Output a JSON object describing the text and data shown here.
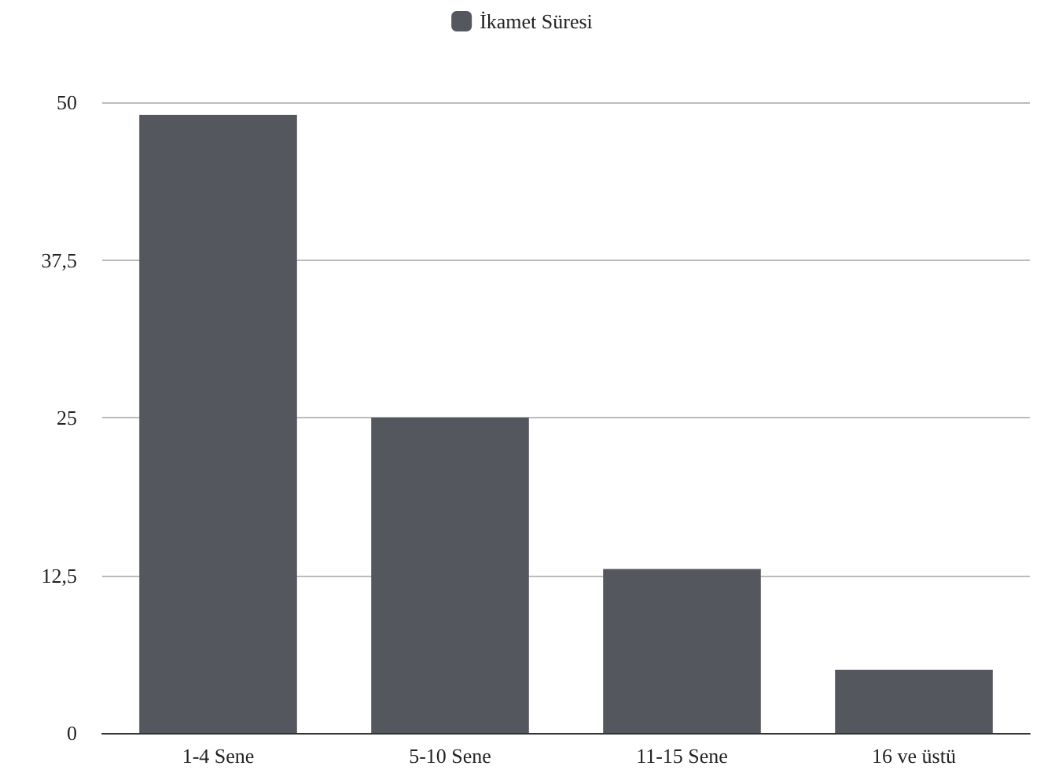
{
  "chart_data": {
    "type": "bar",
    "categories": [
      "1-4 Sene",
      "5-10 Sene",
      "11-15 Sene",
      "16 ve üstü"
    ],
    "series": [
      {
        "name": "İkamet Süresi",
        "color": "#54575e",
        "values": [
          49,
          25,
          13,
          5
        ]
      }
    ],
    "ylim": [
      0,
      50
    ],
    "yticks": [
      0,
      {
        "value": 12.5,
        "label": "12,5"
      },
      25,
      {
        "value": 37.5,
        "label": "37,5"
      },
      50
    ],
    "grid": "y",
    "legend": "top"
  }
}
